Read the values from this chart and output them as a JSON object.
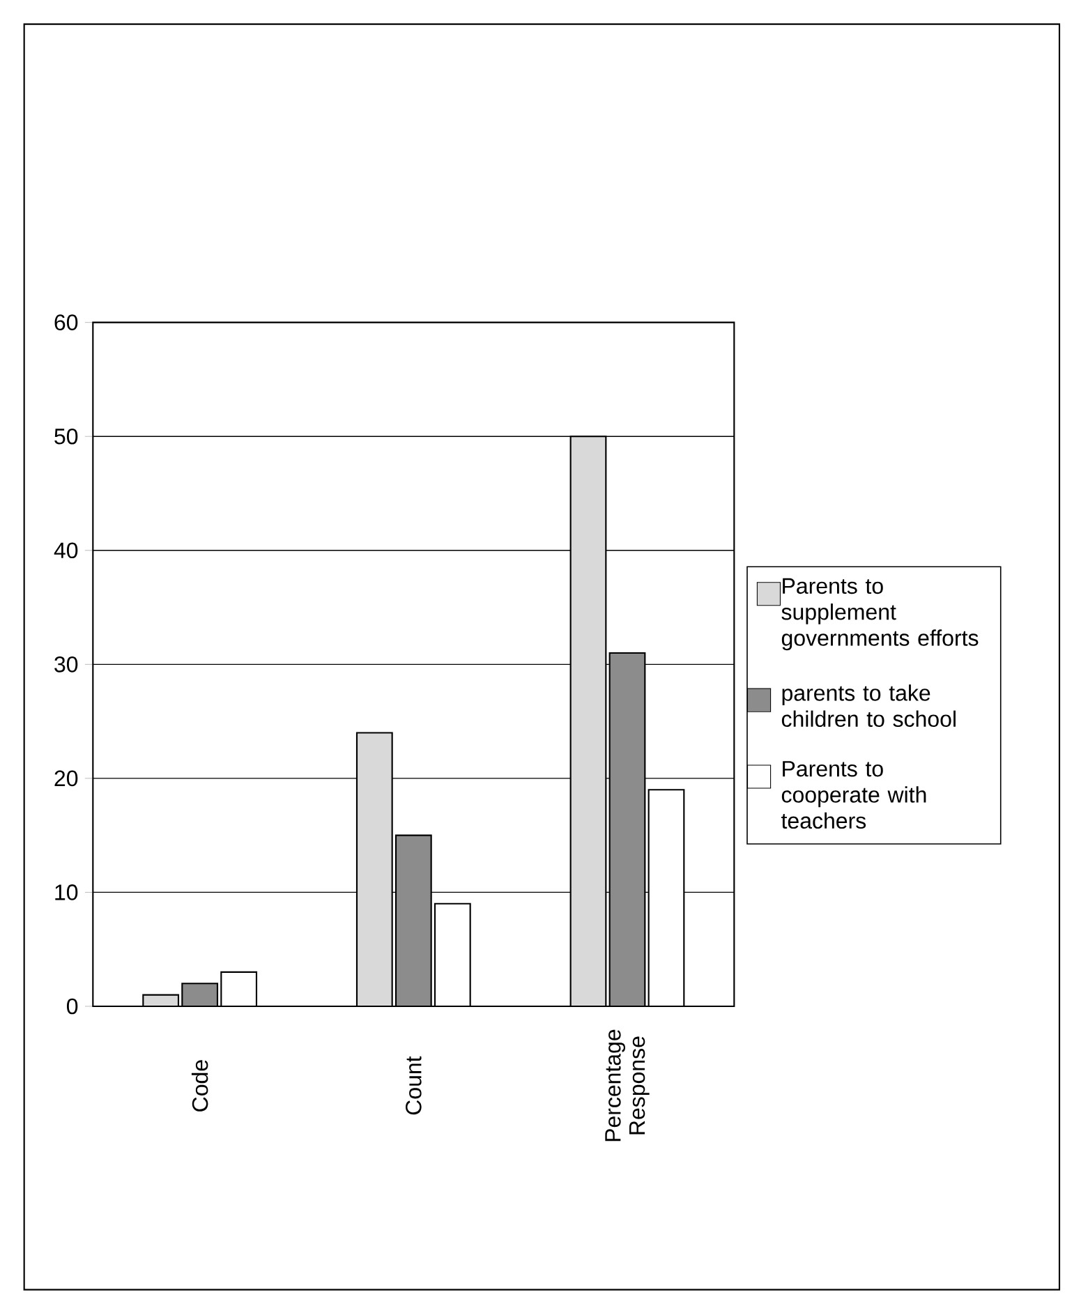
{
  "chart_data": {
    "type": "bar",
    "categories": [
      "Code",
      "Count",
      "Percentage Response"
    ],
    "series": [
      {
        "name": "Parents to supplement governments efforts",
        "color": "#d9d9d9",
        "values": [
          1,
          24,
          50
        ]
      },
      {
        "name": "parents to take children to school",
        "color": "#8c8c8c",
        "values": [
          2,
          15,
          31
        ]
      },
      {
        "name": "Parents to cooperate with teachers",
        "color": "#ffffff",
        "values": [
          3,
          9,
          19
        ]
      }
    ],
    "ylim": [
      0,
      60
    ],
    "yticks": [
      0,
      10,
      20,
      30,
      40,
      50,
      60
    ],
    "grid": "y",
    "legend": "right"
  }
}
